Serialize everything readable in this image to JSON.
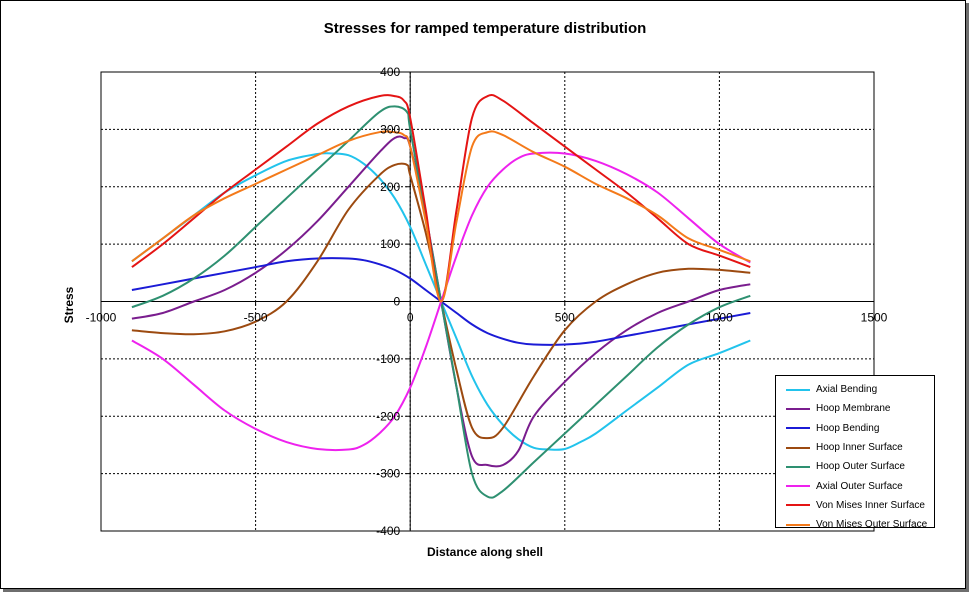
{
  "chart_data": {
    "type": "line",
    "title": "Stresses for ramped temperature distribution",
    "xlabel": "Distance along shell",
    "ylabel": "Stress",
    "xlim": [
      -1000,
      1500
    ],
    "ylim": [
      -400,
      400
    ],
    "xticks": [
      -1000,
      -500,
      0,
      500,
      1000,
      1500
    ],
    "yticks": [
      400,
      300,
      200,
      100,
      0,
      -100,
      -200,
      -300,
      -400
    ],
    "grid": true,
    "legend_position": "bottom-right",
    "series": [
      {
        "name": "Axial Bending",
        "color": "#22c3ec",
        "x": [
          -900,
          -800,
          -700,
          -600,
          -500,
          -400,
          -300,
          -250,
          -200,
          -150,
          -100,
          -50,
          0,
          50,
          100,
          150,
          200,
          250,
          300,
          350,
          400,
          450,
          500,
          550,
          600,
          700,
          800,
          900,
          1000,
          1100
        ],
        "y": [
          70,
          110,
          150,
          190,
          220,
          245,
          257,
          258,
          255,
          240,
          215,
          180,
          130,
          65,
          0,
          -65,
          -130,
          -180,
          -215,
          -240,
          -255,
          -258,
          -257,
          -245,
          -230,
          -190,
          -150,
          -110,
          -90,
          -68
        ]
      },
      {
        "name": "Hoop Membrane",
        "color": "#7a1d8e",
        "x": [
          -900,
          -800,
          -700,
          -600,
          -500,
          -400,
          -300,
          -200,
          -100,
          -50,
          -20,
          0,
          50,
          100,
          150,
          200,
          250,
          300,
          350,
          400,
          500,
          600,
          700,
          800,
          900,
          1000,
          1100
        ],
        "y": [
          -30,
          -20,
          0,
          20,
          50,
          90,
          140,
          200,
          260,
          285,
          285,
          270,
          150,
          0,
          -150,
          -270,
          -285,
          -285,
          -260,
          -200,
          -140,
          -90,
          -50,
          -20,
          0,
          20,
          30
        ]
      },
      {
        "name": "Hoop Bending",
        "color": "#1b1bd6",
        "x": [
          -900,
          -800,
          -700,
          -600,
          -500,
          -400,
          -300,
          -200,
          -150,
          -100,
          -50,
          0,
          50,
          100,
          150,
          200,
          250,
          300,
          350,
          400,
          500,
          600,
          700,
          800,
          900,
          1000,
          1100
        ],
        "y": [
          20,
          30,
          40,
          50,
          60,
          70,
          75,
          75,
          72,
          65,
          55,
          40,
          20,
          0,
          -20,
          -40,
          -55,
          -65,
          -72,
          -75,
          -75,
          -70,
          -60,
          -50,
          -40,
          -30,
          -20
        ]
      },
      {
        "name": "Hoop Inner Surface",
        "color": "#9c4a10",
        "x": [
          -900,
          -800,
          -700,
          -600,
          -500,
          -400,
          -300,
          -200,
          -100,
          -50,
          -10,
          0,
          50,
          100,
          150,
          200,
          250,
          300,
          400,
          500,
          600,
          700,
          800,
          900,
          1000,
          1100
        ],
        "y": [
          -50,
          -55,
          -57,
          -52,
          -35,
          0,
          70,
          160,
          220,
          238,
          238,
          220,
          120,
          0,
          -120,
          -220,
          -238,
          -220,
          -130,
          -50,
          0,
          30,
          50,
          57,
          55,
          50
        ]
      },
      {
        "name": "Hoop Outer Surface",
        "color": "#2e9071",
        "x": [
          -900,
          -800,
          -700,
          -600,
          -500,
          -400,
          -300,
          -200,
          -100,
          -50,
          -10,
          0,
          50,
          100,
          150,
          200,
          250,
          300,
          400,
          500,
          600,
          700,
          800,
          900,
          1000,
          1100
        ],
        "y": [
          -10,
          10,
          40,
          80,
          130,
          180,
          230,
          280,
          330,
          340,
          330,
          300,
          150,
          0,
          -150,
          -300,
          -340,
          -330,
          -280,
          -230,
          -180,
          -130,
          -80,
          -40,
          -10,
          10
        ]
      },
      {
        "name": "Axial Outer Surface",
        "color": "#ee22ee",
        "x": [
          -900,
          -800,
          -700,
          -600,
          -500,
          -400,
          -300,
          -200,
          -150,
          -100,
          -50,
          0,
          50,
          100,
          150,
          200,
          250,
          300,
          350,
          400,
          500,
          600,
          700,
          800,
          900,
          1000,
          1100
        ],
        "y": [
          -68,
          -100,
          -145,
          -190,
          -222,
          -245,
          -257,
          -258,
          -250,
          -230,
          -200,
          -150,
          -80,
          0,
          80,
          150,
          200,
          230,
          250,
          258,
          258,
          245,
          222,
          190,
          145,
          100,
          68
        ]
      },
      {
        "name": "Von Mises Inner Surface",
        "color": "#e41414",
        "x": [
          -900,
          -800,
          -700,
          -600,
          -500,
          -400,
          -300,
          -200,
          -100,
          -50,
          -20,
          0,
          50,
          100,
          150,
          200,
          250,
          300,
          400,
          500,
          600,
          700,
          800,
          900,
          1000,
          1100
        ],
        "y": [
          60,
          100,
          145,
          190,
          230,
          270,
          310,
          340,
          358,
          358,
          350,
          320,
          160,
          0,
          160,
          320,
          358,
          350,
          310,
          270,
          230,
          190,
          145,
          100,
          80,
          60
        ]
      },
      {
        "name": "Von Mises Outer Surface",
        "color": "#f47a1a",
        "x": [
          -900,
          -800,
          -700,
          -600,
          -500,
          -400,
          -300,
          -200,
          -100,
          -50,
          -20,
          0,
          50,
          100,
          150,
          200,
          250,
          300,
          400,
          500,
          600,
          700,
          800,
          900,
          1000,
          1100
        ],
        "y": [
          70,
          110,
          150,
          180,
          205,
          230,
          255,
          280,
          295,
          295,
          290,
          270,
          140,
          0,
          140,
          270,
          295,
          290,
          260,
          235,
          205,
          180,
          150,
          110,
          90,
          70
        ]
      }
    ]
  }
}
